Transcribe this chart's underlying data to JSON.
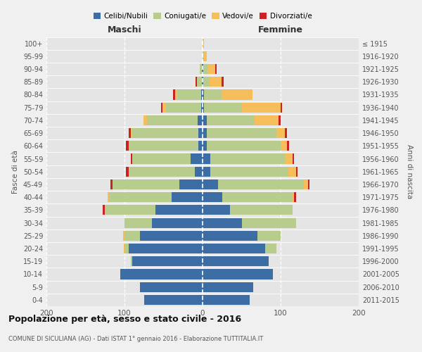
{
  "age_groups": [
    "0-4",
    "5-9",
    "10-14",
    "15-19",
    "20-24",
    "25-29",
    "30-34",
    "35-39",
    "40-44",
    "45-49",
    "50-54",
    "55-59",
    "60-64",
    "65-69",
    "70-74",
    "75-79",
    "80-84",
    "85-89",
    "90-94",
    "95-99",
    "100+"
  ],
  "birth_years": [
    "2011-2015",
    "2006-2010",
    "2001-2005",
    "1996-2000",
    "1991-1995",
    "1986-1990",
    "1981-1985",
    "1976-1980",
    "1971-1975",
    "1966-1970",
    "1961-1965",
    "1956-1960",
    "1951-1955",
    "1946-1950",
    "1941-1945",
    "1936-1940",
    "1931-1935",
    "1926-1930",
    "1921-1925",
    "1916-1920",
    "≤ 1915"
  ],
  "colors": {
    "celibi": "#3c6ea5",
    "coniugati": "#b8cc8e",
    "vedovi": "#f5be5a",
    "divorziati": "#cc2222"
  },
  "males": {
    "celibi": [
      75,
      80,
      105,
      90,
      95,
      80,
      65,
      60,
      40,
      30,
      10,
      15,
      5,
      5,
      6,
      2,
      2,
      1,
      1,
      0,
      0
    ],
    "coniugati": [
      0,
      0,
      0,
      2,
      5,
      20,
      35,
      65,
      80,
      85,
      85,
      75,
      90,
      85,
      65,
      45,
      30,
      6,
      3,
      0,
      0
    ],
    "vedovi": [
      0,
      0,
      0,
      0,
      1,
      2,
      0,
      0,
      2,
      0,
      0,
      0,
      0,
      2,
      5,
      4,
      3,
      0,
      0,
      0,
      0
    ],
    "divorziati": [
      0,
      0,
      0,
      0,
      0,
      0,
      0,
      3,
      0,
      3,
      3,
      2,
      3,
      3,
      0,
      2,
      3,
      2,
      0,
      0,
      0
    ]
  },
  "females": {
    "celibi": [
      60,
      65,
      90,
      85,
      80,
      70,
      50,
      35,
      25,
      20,
      10,
      10,
      5,
      5,
      5,
      2,
      2,
      1,
      1,
      0,
      0
    ],
    "coniugati": [
      0,
      0,
      0,
      0,
      15,
      30,
      70,
      80,
      90,
      110,
      100,
      95,
      95,
      90,
      62,
      48,
      22,
      8,
      5,
      2,
      0
    ],
    "vedovi": [
      0,
      0,
      0,
      0,
      0,
      0,
      0,
      0,
      2,
      5,
      10,
      10,
      8,
      10,
      30,
      50,
      40,
      15,
      10,
      3,
      2
    ],
    "divorziati": [
      0,
      0,
      0,
      0,
      0,
      0,
      0,
      0,
      3,
      2,
      2,
      2,
      3,
      3,
      3,
      2,
      0,
      3,
      2,
      0,
      0
    ]
  },
  "xlim": 200,
  "title": "Popolazione per età, sesso e stato civile - 2016",
  "subtitle": "COMUNE DI SICULIANA (AG) - Dati ISTAT 1° gennaio 2016 - Elaborazione TUTTITALIA.IT",
  "ylabel_left": "Fasce di età",
  "ylabel_right": "Anni di nascita",
  "xlabel_left": "Maschi",
  "xlabel_right": "Femmine",
  "bg_color": "#f0f0f0",
  "plot_bg_color": "#e5e5e5"
}
